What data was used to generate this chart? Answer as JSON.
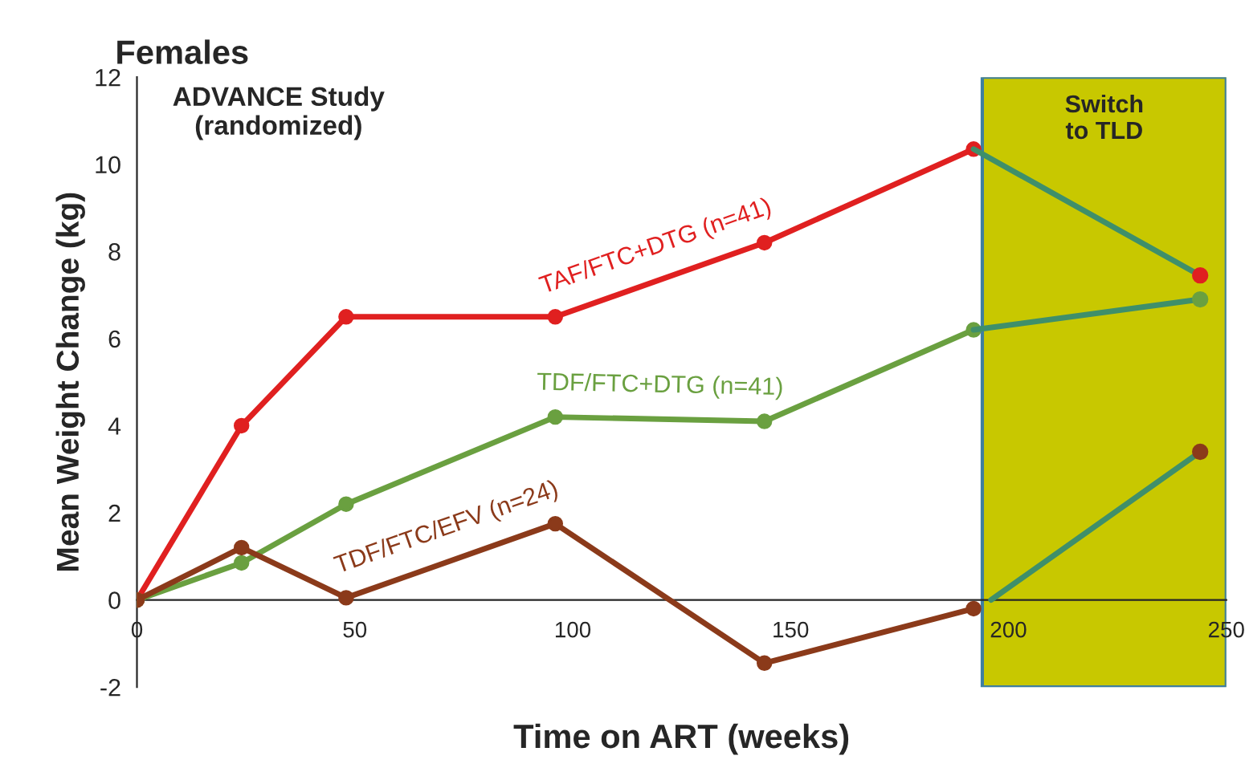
{
  "chart_data": {
    "type": "line",
    "title": "Females",
    "xlabel": "Time on ART (weeks)",
    "ylabel": "Mean Weight Change (kg)",
    "xlim": [
      0,
      250
    ],
    "xticks": [
      0,
      50,
      100,
      150,
      200,
      250
    ],
    "ylim": [
      -2,
      12
    ],
    "yticks": [
      -2,
      0,
      2,
      4,
      6,
      8,
      10,
      12
    ],
    "grid": false,
    "marker": "circle",
    "series": [
      {
        "name": "TAF/FTC+DTG (n=41)",
        "color": "#e02020",
        "x": [
          0,
          24,
          48,
          96,
          144,
          192
        ],
        "values": [
          0,
          4,
          6.5,
          6.5,
          8.2,
          10.35
        ]
      },
      {
        "name": "TDF/FTC+DTG (n=41)",
        "color": "#6aa040",
        "x": [
          0,
          24,
          48,
          96,
          144,
          192
        ],
        "values": [
          0,
          0.85,
          2.2,
          4.2,
          4.1,
          6.2
        ]
      },
      {
        "name": "TDF/FTC/EFV (n=24)",
        "color": "#8b3a1a",
        "x": [
          0,
          24,
          48,
          96,
          144,
          192
        ],
        "values": [
          0,
          1.2,
          0.05,
          1.75,
          -1.45,
          -0.2
        ]
      },
      {
        "color": "#3f8f6a",
        "marker": "none",
        "x": [
          192,
          244
        ],
        "values": [
          10.35,
          7.45
        ]
      },
      {
        "color": "#3f8f6a",
        "marker": "none",
        "x": [
          192,
          244
        ],
        "values": [
          6.2,
          6.9
        ]
      },
      {
        "color": "#3f8f6a",
        "marker": "none",
        "x": [
          196,
          244
        ],
        "values": [
          0,
          3.4
        ]
      },
      {
        "type": "scatter",
        "color": "#e02020",
        "x": [
          244
        ],
        "values": [
          7.45
        ]
      },
      {
        "type": "scatter",
        "color": "#6aa040",
        "x": [
          244
        ],
        "values": [
          6.9
        ]
      },
      {
        "type": "scatter",
        "color": "#8b3a1a",
        "x": [
          244
        ],
        "values": [
          3.4
        ]
      }
    ],
    "bands": [
      {
        "axis": "x",
        "from": 194,
        "to": 250,
        "label": "Switch\nto TLD",
        "color": "#c8c800"
      }
    ],
    "annotations": [
      "ADVANCE Study\n(randomized)"
    ]
  }
}
